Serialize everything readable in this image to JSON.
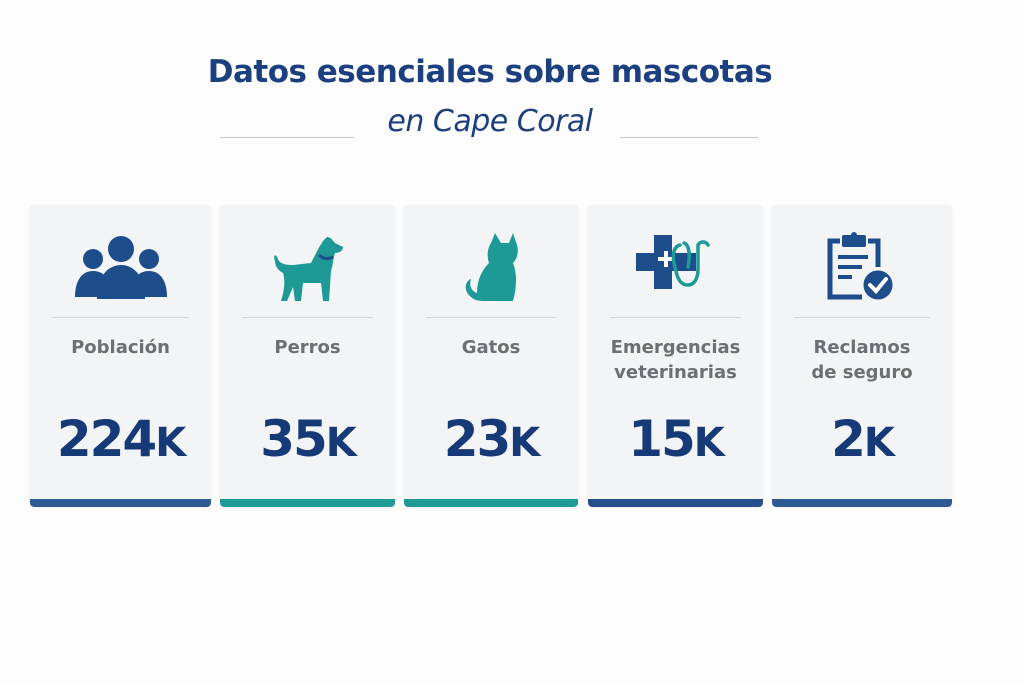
{
  "header": {
    "title": "Datos esenciales sobre mascotas",
    "subtitle": "en Cape Coral"
  },
  "colors": {
    "navy": "#1e4d8c",
    "teal": "#1e9a96",
    "value": "#163a78",
    "bar_navy": "#2e5a94",
    "bar_teal": "#1f9a94"
  },
  "cards": [
    {
      "label": "Población",
      "value": "224",
      "unit": "K",
      "icon": "people-icon",
      "accent": "#2e5a94"
    },
    {
      "label": "Perros",
      "value": "35",
      "unit": "K",
      "icon": "dog-icon",
      "accent": "#1f9a94"
    },
    {
      "label": "Gatos",
      "value": "23",
      "unit": "K",
      "icon": "cat-icon",
      "accent": "#1f9a94"
    },
    {
      "label": "Emergencias veterinarias",
      "value": "15",
      "unit": "K",
      "icon": "medical-cross-stethoscope-icon",
      "accent": "#274f8c"
    },
    {
      "label": "Reclamos de seguro",
      "value": "2",
      "unit": "K",
      "icon": "clipboard-check-icon",
      "accent": "#2e5a94"
    }
  ]
}
